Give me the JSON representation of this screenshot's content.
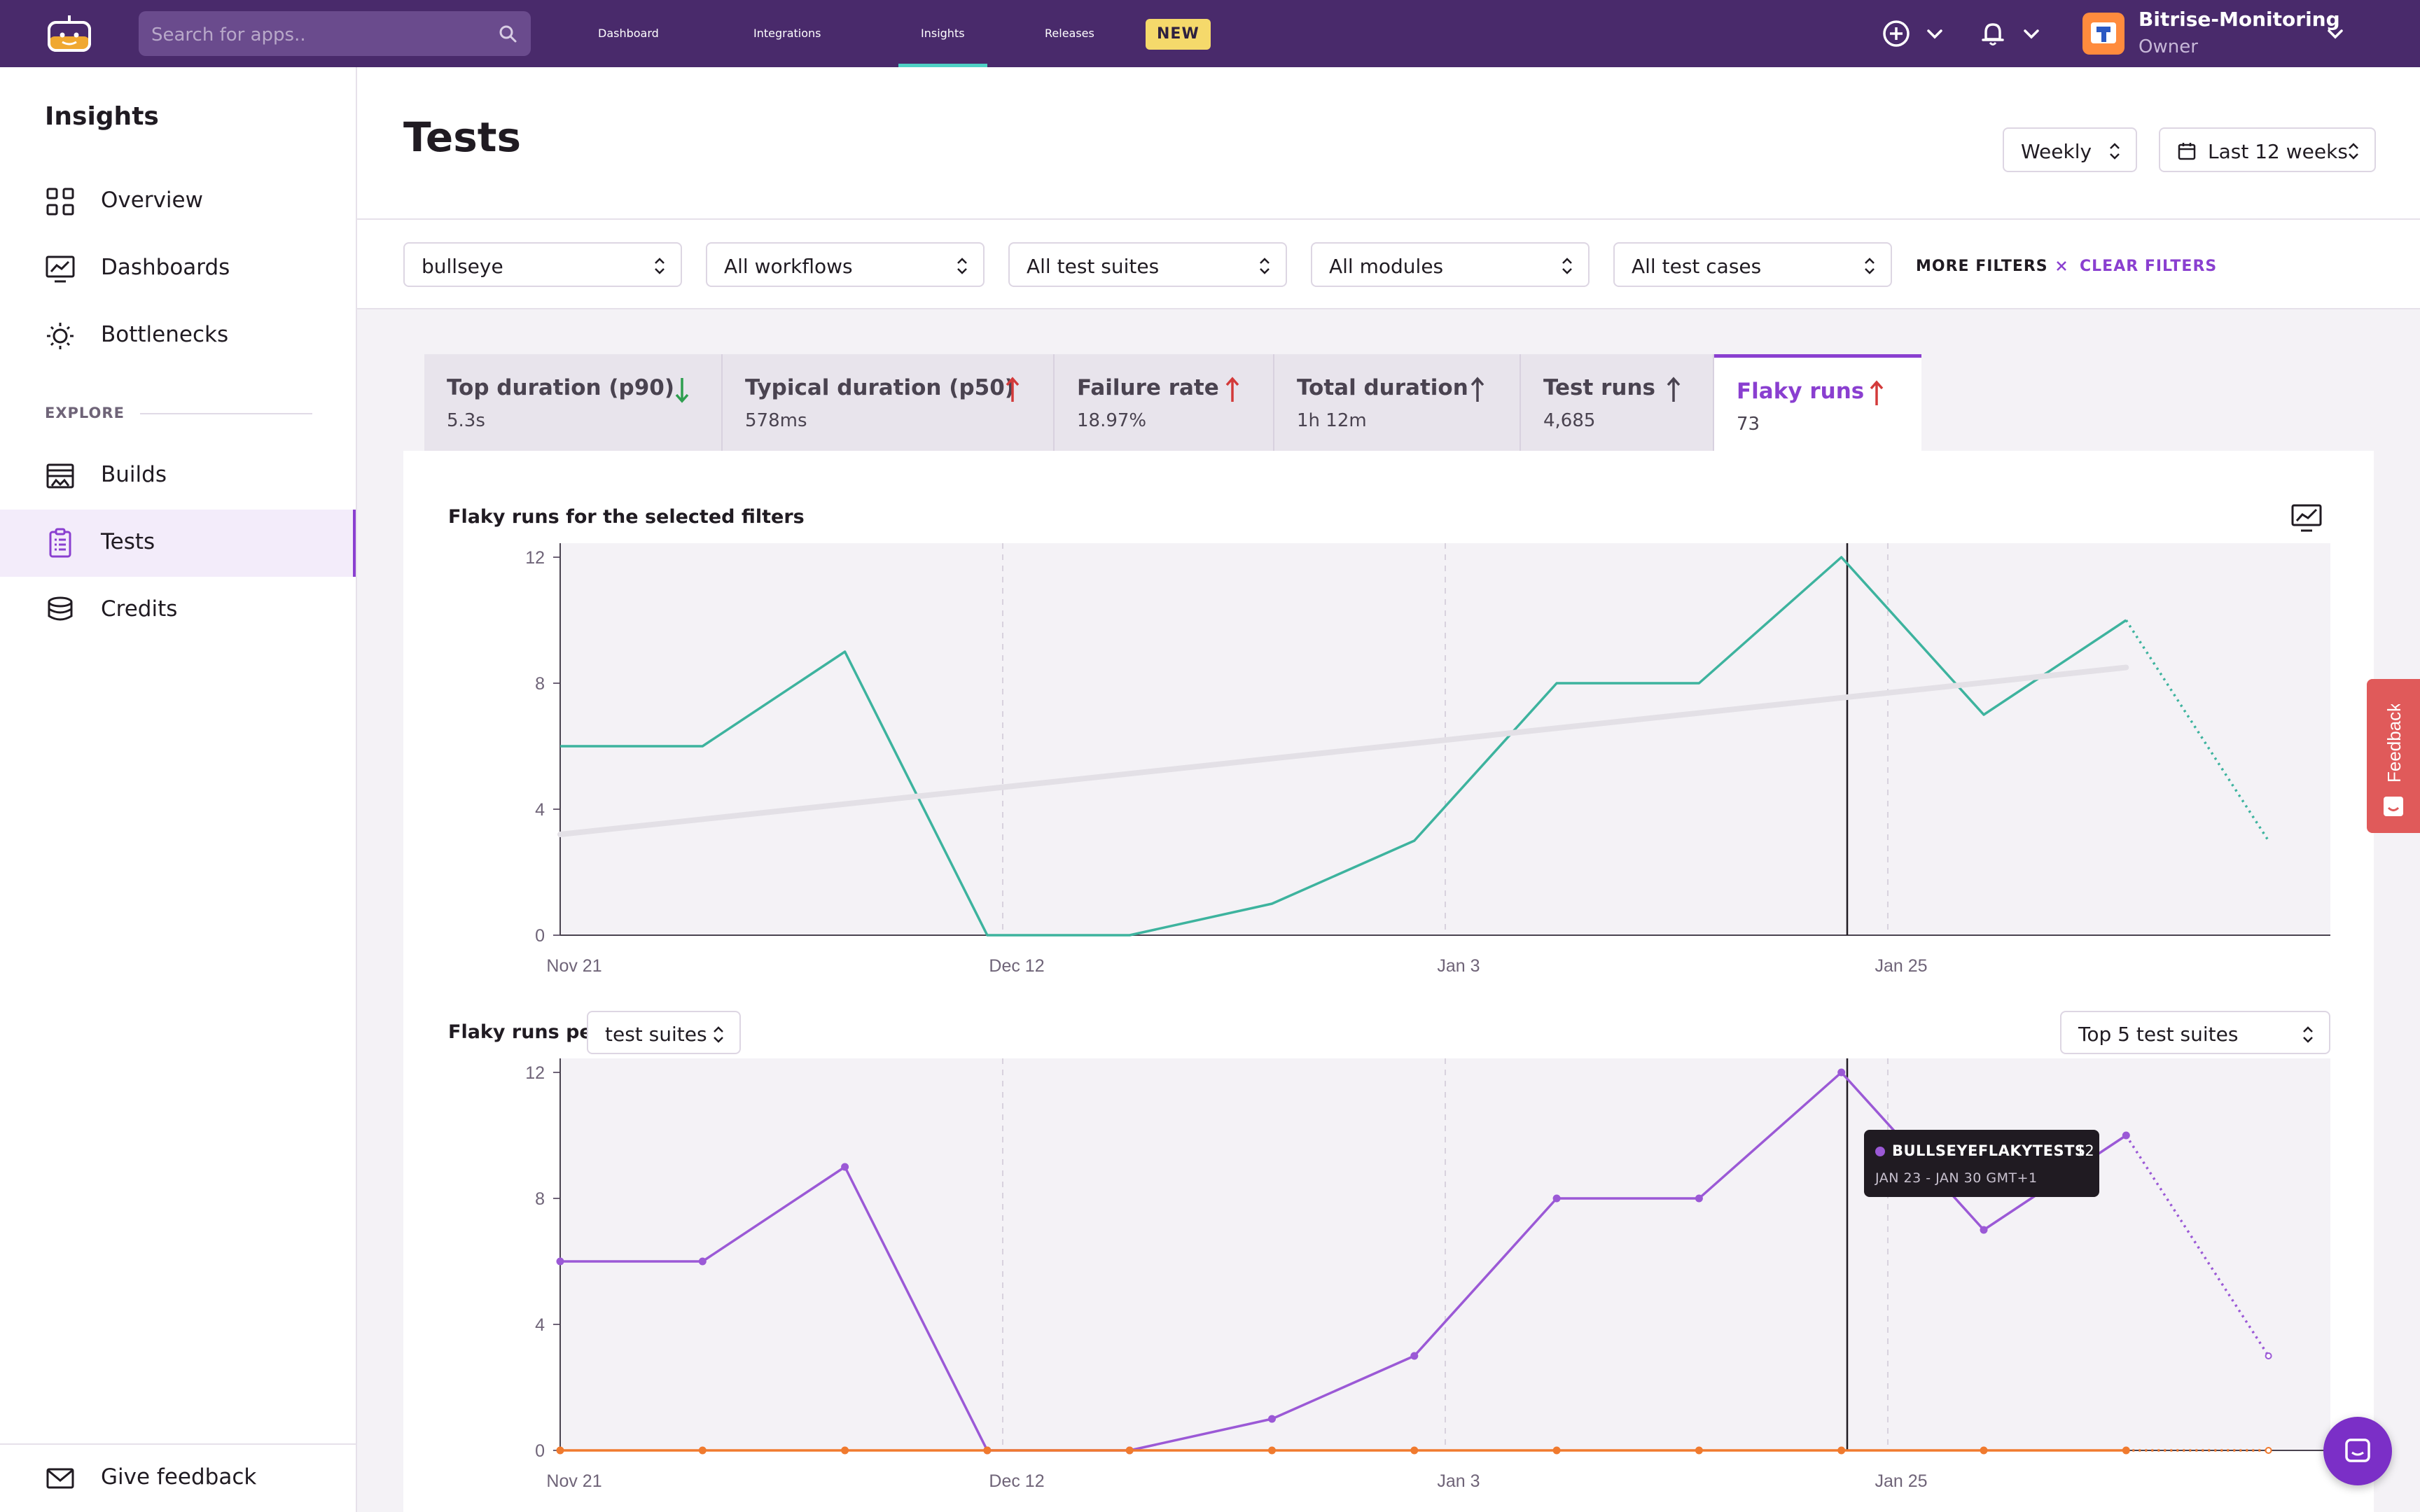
{
  "topbar": {
    "search_placeholder": "Search for apps..",
    "nav": [
      "Dashboard",
      "Integrations",
      "Insights",
      "Releases"
    ],
    "active_nav": "Insights",
    "releases_badge": "NEW",
    "account_name": "Bitrise-Monitoring",
    "account_role": "Owner"
  },
  "sidebar": {
    "title": "Insights",
    "items": [
      {
        "label": "Overview",
        "icon": "grid-icon"
      },
      {
        "label": "Dashboards",
        "icon": "chart-monitor-icon"
      },
      {
        "label": "Bottlenecks",
        "icon": "bulb-icon"
      }
    ],
    "section_label": "EXPLORE",
    "explore_items": [
      {
        "label": "Builds",
        "icon": "builds-icon"
      },
      {
        "label": "Tests",
        "icon": "clipboard-icon",
        "active": true
      },
      {
        "label": "Credits",
        "icon": "coins-icon"
      }
    ],
    "bottom_item": "Give feedback"
  },
  "page": {
    "title": "Tests",
    "period_select": "Weekly",
    "range_select": "Last 12 weeks"
  },
  "filters": {
    "app": "bullseye",
    "workflows": "All workflows",
    "test_suites": "All test suites",
    "modules": "All modules",
    "test_cases": "All test cases",
    "more_filters": "MORE FILTERS",
    "clear_filters": "CLEAR FILTERS"
  },
  "metric_tabs": [
    {
      "label": "Top duration (p90)",
      "value": "5.3s",
      "trend": "down",
      "trend_color": "#2e9e4f"
    },
    {
      "label": "Typical duration (p50)",
      "value": "578ms",
      "trend": "up",
      "trend_color": "#d33a3a"
    },
    {
      "label": "Failure rate",
      "value": "18.97%",
      "trend": "up",
      "trend_color": "#d33a3a"
    },
    {
      "label": "Total duration",
      "value": "1h 12m",
      "trend": "up",
      "trend_color": "#4a4350"
    },
    {
      "label": "Test runs",
      "value": "4,685",
      "trend": "up",
      "trend_color": "#4a4350"
    },
    {
      "label": "Flaky runs",
      "value": "73",
      "trend": "up",
      "trend_color": "#d33a3a",
      "active": true
    }
  ],
  "chart1_title": "Flaky runs for the selected filters",
  "chart2": {
    "title_prefix": "Flaky runs per",
    "group_select": "test suites",
    "top_select": "Top 5 test suites"
  },
  "tooltip": {
    "series": "BULLSEYEFLAKYTESTS",
    "value": "12",
    "range": "JAN 23 - JAN 30 GMT+1"
  },
  "feedback_tab": "Feedback",
  "colors": {
    "topbar": "#492a6b",
    "accent": "#8a3fd0",
    "series_teal": "#3db39e",
    "series_purple": "#9b59d6",
    "series_orange": "#f07a2e"
  },
  "chart_data": [
    {
      "type": "line",
      "title": "Flaky runs for the selected filters",
      "x_tick_labels": [
        "Nov 21",
        "Dec 12",
        "Jan 3",
        "Jan 25"
      ],
      "y_ticks": [
        0,
        4,
        8,
        12
      ],
      "ylim": [
        0,
        12
      ],
      "series": [
        {
          "values": [
            6,
            6,
            9,
            0,
            0,
            1,
            3,
            8,
            8,
            12,
            7,
            10,
            3
          ],
          "color": "#3db39e",
          "last_segment": "dotted"
        },
        {
          "trendline": true,
          "start": 3.2,
          "end": 8.5,
          "color": "#e3e0e6"
        }
      ],
      "highlight_index": 9,
      "grid": "dashed vertical at x ticks"
    },
    {
      "type": "line",
      "title": "Flaky runs per test suites",
      "x_tick_labels": [
        "Nov 21",
        "Dec 12",
        "Jan 3",
        "Jan 25"
      ],
      "y_ticks": [
        0,
        4,
        8,
        12
      ],
      "ylim": [
        0,
        12
      ],
      "series": [
        {
          "name": "BULLSEYEFLAKYTESTS",
          "values": [
            6,
            6,
            9,
            0,
            0,
            1,
            3,
            8,
            8,
            12,
            7,
            10,
            3
          ],
          "color": "#9b59d6",
          "last_segment": "dotted"
        },
        {
          "values": [
            0,
            0,
            0,
            0,
            0,
            0,
            0,
            0,
            0,
            0,
            0,
            0,
            0
          ],
          "color": "#f07a2e"
        }
      ],
      "highlight_index": 9
    }
  ]
}
